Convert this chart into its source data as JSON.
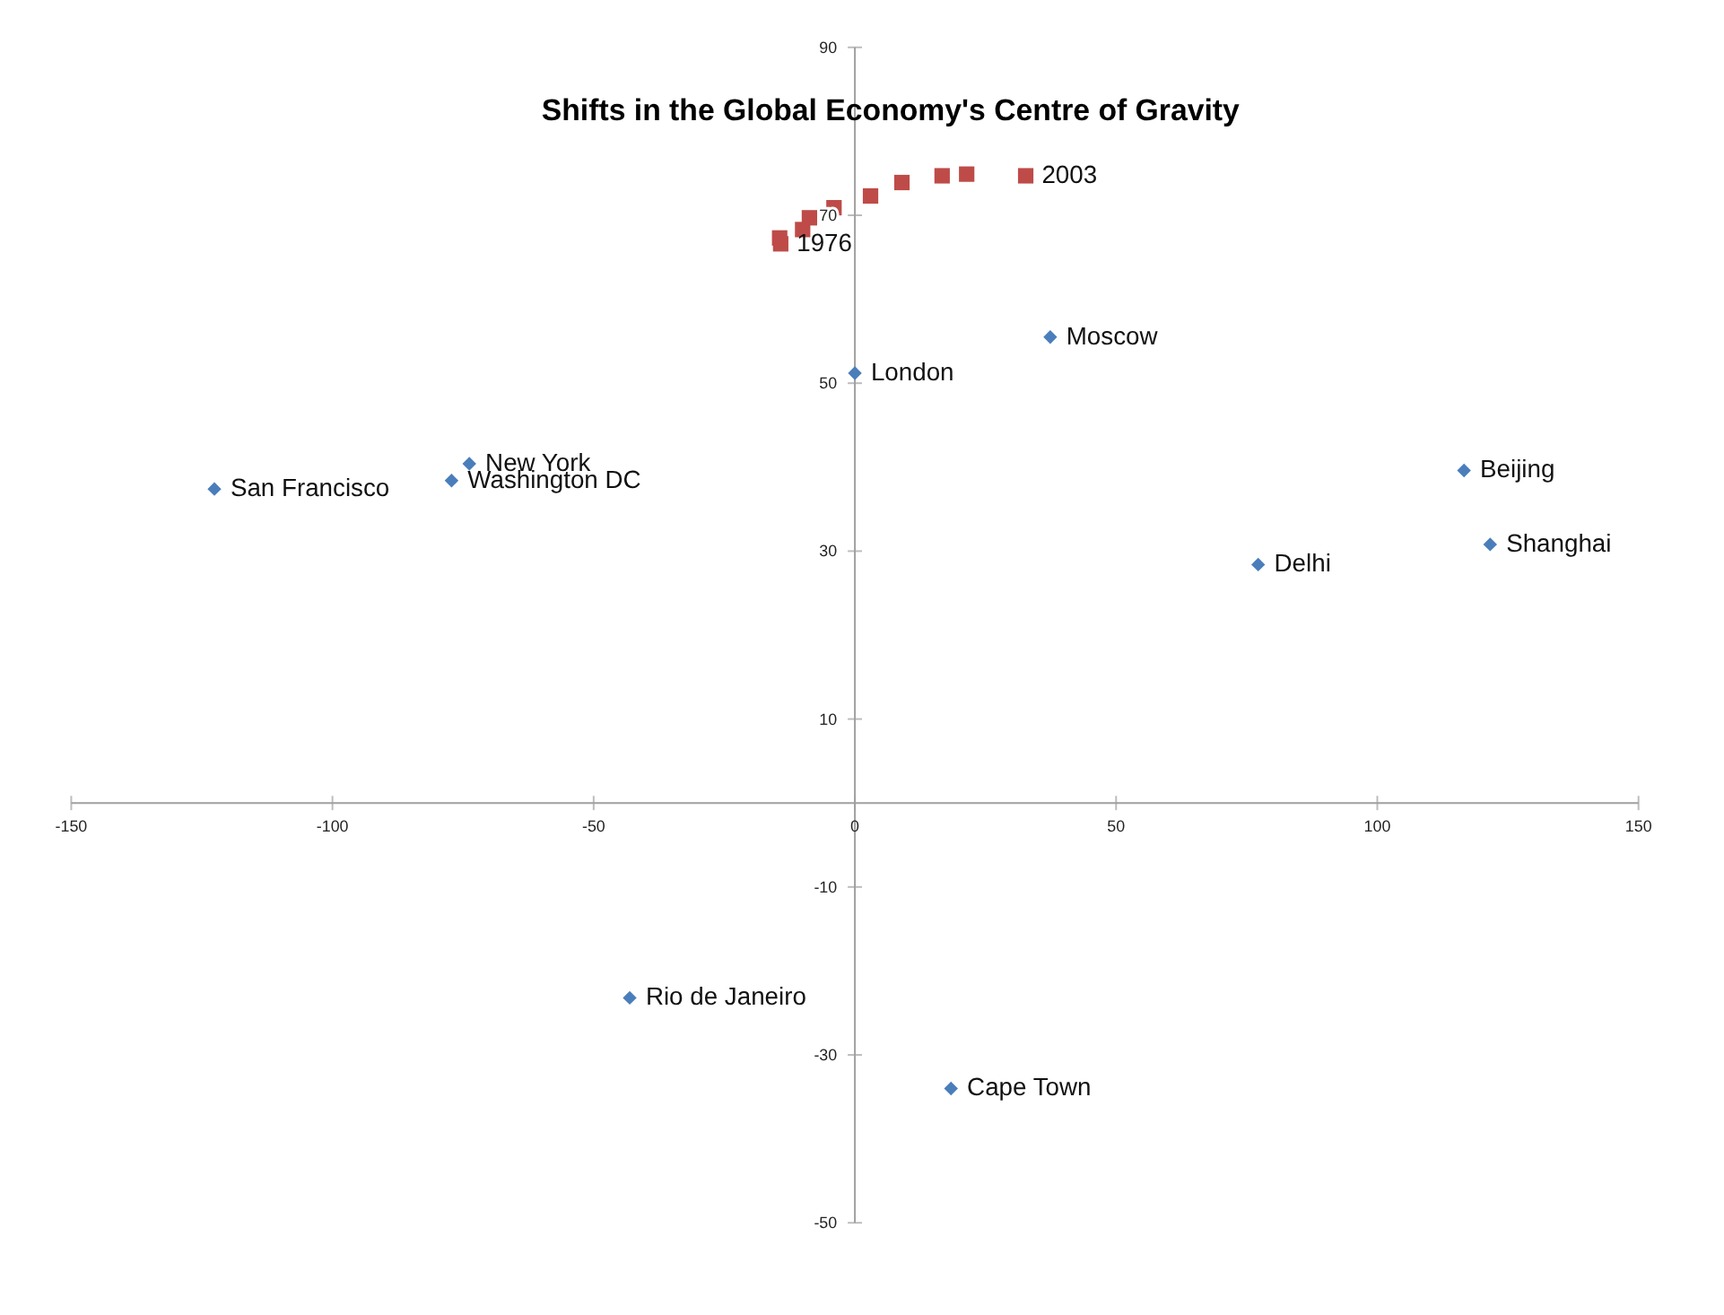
{
  "chart_data": {
    "type": "scatter",
    "title": "Shifts in the Global Economy's Centre of Gravity",
    "series": [
      {
        "marker": "diamond",
        "color": "#4a7ebb",
        "x": [
          -122.6,
          -73.8,
          -77.2,
          0,
          37.4,
          116.6,
          121.6,
          77.2,
          -43.1,
          18.4
        ],
        "values": [
          37.4,
          40.4,
          38.4,
          51.2,
          55.5,
          39.6,
          30.8,
          28.4,
          -23.2,
          -34.0
        ]
      },
      {
        "marker": "square",
        "color": "#be4b48",
        "x": [
          -14.2,
          -14.4,
          -10.0,
          -8.7,
          -4.0,
          3.0,
          9.0,
          16.7,
          21.4,
          32.7
        ],
        "values": [
          66.6,
          67.3,
          68.3,
          69.7,
          70.9,
          72.3,
          73.9,
          74.7,
          74.9,
          74.7
        ]
      }
    ],
    "annotations": [
      {
        "text": "San Francisco",
        "x": -122.6,
        "y": 37.4
      },
      {
        "text": "New York",
        "x": -73.8,
        "y": 40.4
      },
      {
        "text": "Washington DC",
        "x": -77.2,
        "y": 38.4
      },
      {
        "text": "London",
        "x": 0,
        "y": 51.2
      },
      {
        "text": "Moscow",
        "x": 37.4,
        "y": 55.5
      },
      {
        "text": "Beijing",
        "x": 116.6,
        "y": 39.6
      },
      {
        "text": "Shanghai",
        "x": 121.6,
        "y": 30.8
      },
      {
        "text": "Delhi",
        "x": 77.2,
        "y": 28.4
      },
      {
        "text": "Rio de Janeiro",
        "x": -43.1,
        "y": -23.2
      },
      {
        "text": "Cape Town",
        "x": 18.4,
        "y": -34.0
      },
      {
        "text": "1976",
        "x": -14.2,
        "y": 66.6
      },
      {
        "text": "2003",
        "x": 32.7,
        "y": 74.7
      }
    ],
    "xlim": [
      -150,
      150
    ],
    "xticks": [
      -150,
      -100,
      -50,
      0,
      50,
      100,
      150
    ],
    "ylim": [
      -50,
      90
    ],
    "yticks": [
      -50,
      -30,
      -10,
      10,
      30,
      50,
      70,
      90
    ],
    "grid": false
  }
}
